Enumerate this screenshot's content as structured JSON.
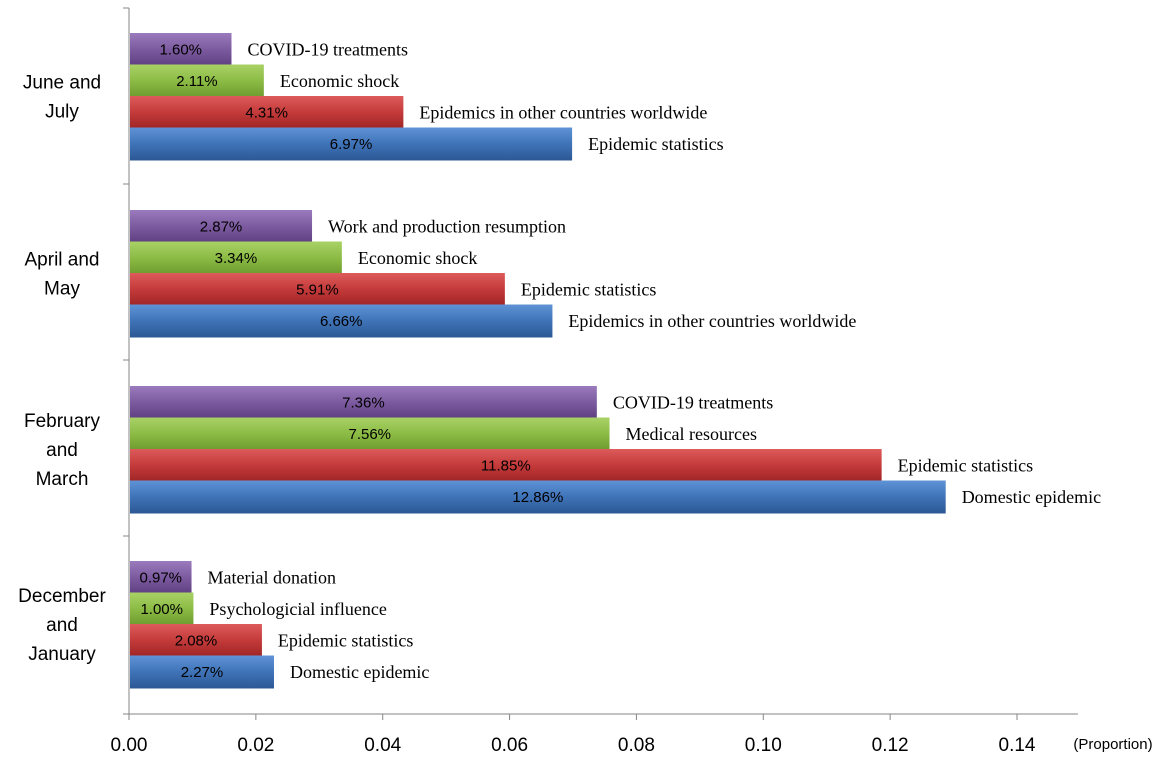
{
  "chart_data": {
    "type": "bar",
    "orientation": "horizontal",
    "xlabel": "(Proportion)",
    "xlim": [
      0,
      0.15
    ],
    "xticks": [
      "0.00",
      "0.02",
      "0.04",
      "0.06",
      "0.08",
      "0.10",
      "0.12",
      "0.14"
    ],
    "xtick_values": [
      0,
      0.02,
      0.04,
      0.06,
      0.08,
      0.1,
      0.12,
      0.14
    ],
    "grid": false,
    "series_colors": [
      "#7c5a9f",
      "#8cbb45",
      "#c43a3a",
      "#3f73b8"
    ],
    "groups": [
      {
        "label_lines": [
          "June and",
          "July"
        ],
        "bars": [
          {
            "topic": "COVID-19 treatments",
            "value": 0.016,
            "label": "1.60%"
          },
          {
            "topic": "Economic shock",
            "value": 0.0211,
            "label": "2.11%"
          },
          {
            "topic": "Epidemics in other countries worldwide",
            "value": 0.0431,
            "label": "4.31%"
          },
          {
            "topic": "Epidemic statistics",
            "value": 0.0697,
            "label": "6.97%"
          }
        ]
      },
      {
        "label_lines": [
          "April and",
          "May"
        ],
        "bars": [
          {
            "topic": "Work and production resumption",
            "value": 0.0287,
            "label": "2.87%"
          },
          {
            "topic": "Economic shock",
            "value": 0.0334,
            "label": "3.34%"
          },
          {
            "topic": "Epidemic statistics",
            "value": 0.0591,
            "label": "5.91%"
          },
          {
            "topic": "Epidemics in other countries worldwide",
            "value": 0.0666,
            "label": "6.66%"
          }
        ]
      },
      {
        "label_lines": [
          "February",
          "and",
          "March"
        ],
        "bars": [
          {
            "topic": "COVID-19 treatments",
            "value": 0.0736,
            "label": "7.36%"
          },
          {
            "topic": "Medical resources",
            "value": 0.0756,
            "label": "7.56%"
          },
          {
            "topic": "Epidemic statistics",
            "value": 0.1185,
            "label": "11.85%"
          },
          {
            "topic": "Domestic epidemic",
            "value": 0.1286,
            "label": "12.86%"
          }
        ]
      },
      {
        "label_lines": [
          "December",
          "and",
          "January"
        ],
        "bars": [
          {
            "topic": "Material donation",
            "value": 0.0097,
            "label": "0.97%"
          },
          {
            "topic": "Psychologicial influence",
            "value": 0.01,
            "label": "1.00%"
          },
          {
            "topic": "Epidemic statistics",
            "value": 0.0208,
            "label": "2.08%"
          },
          {
            "topic": "Domestic epidemic",
            "value": 0.0227,
            "label": "2.27%"
          }
        ]
      }
    ]
  }
}
